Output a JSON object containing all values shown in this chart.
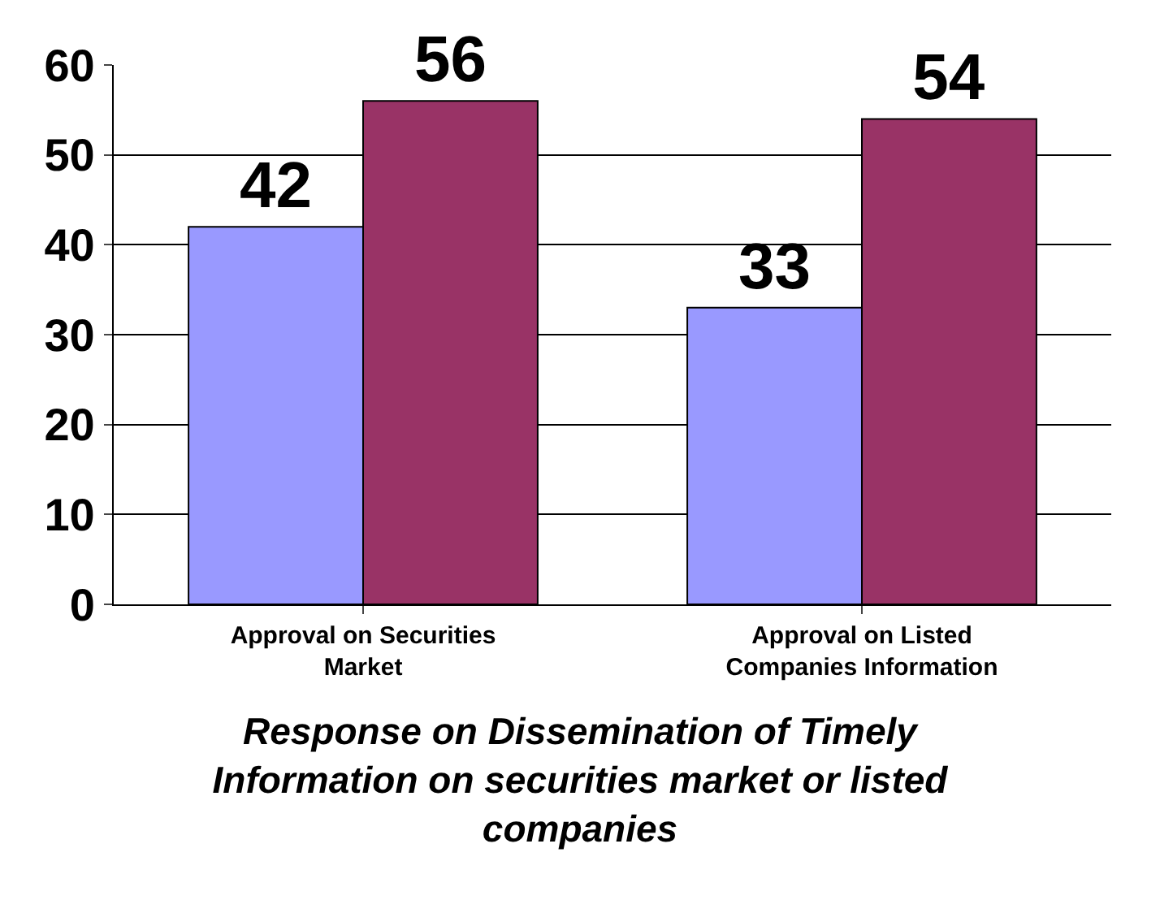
{
  "chart_data": {
    "type": "bar",
    "title": "Response on Dissemination of Timely Information on securities market or listed companies",
    "categories": [
      "Approval on Securities Market",
      "Approval on Listed Companies Information"
    ],
    "series": [
      {
        "color": "#9999ff",
        "values": [
          42,
          33
        ]
      },
      {
        "color": "#993366",
        "values": [
          56,
          54
        ]
      }
    ],
    "ylim": [
      0,
      60
    ],
    "yticks": [
      0,
      10,
      20,
      30,
      40,
      50,
      60
    ],
    "grid": "y",
    "data_labels": true,
    "legend": false
  }
}
